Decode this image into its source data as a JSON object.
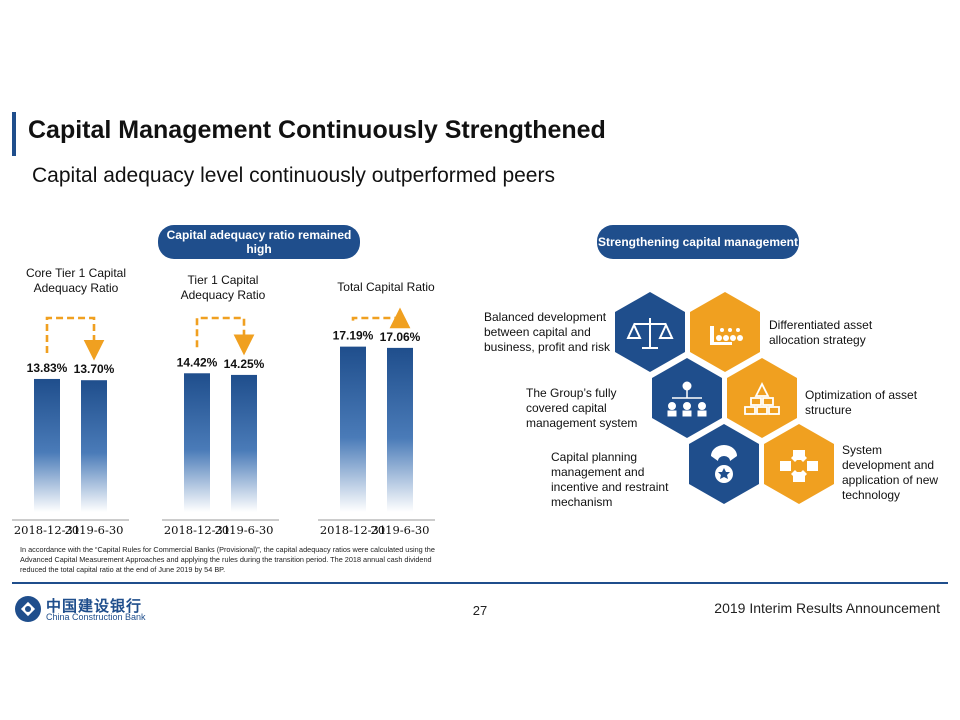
{
  "header": {
    "title": "Capital Management Continuously Strengthened",
    "subtitle": "Capital adequacy level continuously outperformed peers"
  },
  "left_panel": {
    "pill": "Capital adequacy ratio remained high"
  },
  "right_panel": {
    "pill": "Strengthening capital management",
    "items": [
      {
        "label": "Balanced development between capital and business, profit and risk",
        "icon": "scales-icon"
      },
      {
        "label": "Differentiated asset allocation strategy",
        "icon": "asset-allocation-icon"
      },
      {
        "label": "The Group’s fully covered capital management system",
        "icon": "org-structure-icon"
      },
      {
        "label": "Optimization of asset structure",
        "icon": "stacked-blocks-icon"
      },
      {
        "label": "Capital planning management and incentive and restraint mechanism",
        "icon": "medal-icon"
      },
      {
        "label": "System development and application of new technology",
        "icon": "connected-nodes-icon"
      }
    ]
  },
  "colors": {
    "primary_blue": "#1f4e8c",
    "bar_blue": "#2a5ea4",
    "orange": "#f0a020",
    "hex_blue": "#1f4e8c",
    "hex_orange": "#f0a020"
  },
  "chart_data": {
    "type": "bar",
    "categories": [
      "2018-12-31",
      "2019-6-30"
    ],
    "groups": [
      {
        "name": "Core Tier 1 Capital Adequacy Ratio",
        "values": [
          13.83,
          13.7
        ],
        "labels": [
          "13.83%",
          "13.70%"
        ]
      },
      {
        "name": "Tier 1 Capital Adequacy Ratio",
        "values": [
          14.42,
          14.25
        ],
        "labels": [
          "14.42%",
          "14.25%"
        ]
      },
      {
        "name": "Total Capital Ratio",
        "values": [
          17.19,
          17.06
        ],
        "labels": [
          "17.19%",
          "17.06%"
        ]
      }
    ],
    "unit": "%",
    "grid": false,
    "legend": "none"
  },
  "footnote": "In accordance with the “Capital Rules for Commercial Banks (Provisional)”, the capital adequacy ratios were calculated using the Advanced Capital Measurement Approaches and applying the rules during the transition period. The 2018 annual cash dividend reduced the total capital ratio at the end of June 2019 by 54 BP.",
  "footer": {
    "bank_name_cn": "中国建设银行",
    "bank_name_en": "China Construction Bank",
    "page_number": "27",
    "report_title": "2019 Interim Results Announcement",
    "logo_icon": "ccb-logo-icon"
  }
}
